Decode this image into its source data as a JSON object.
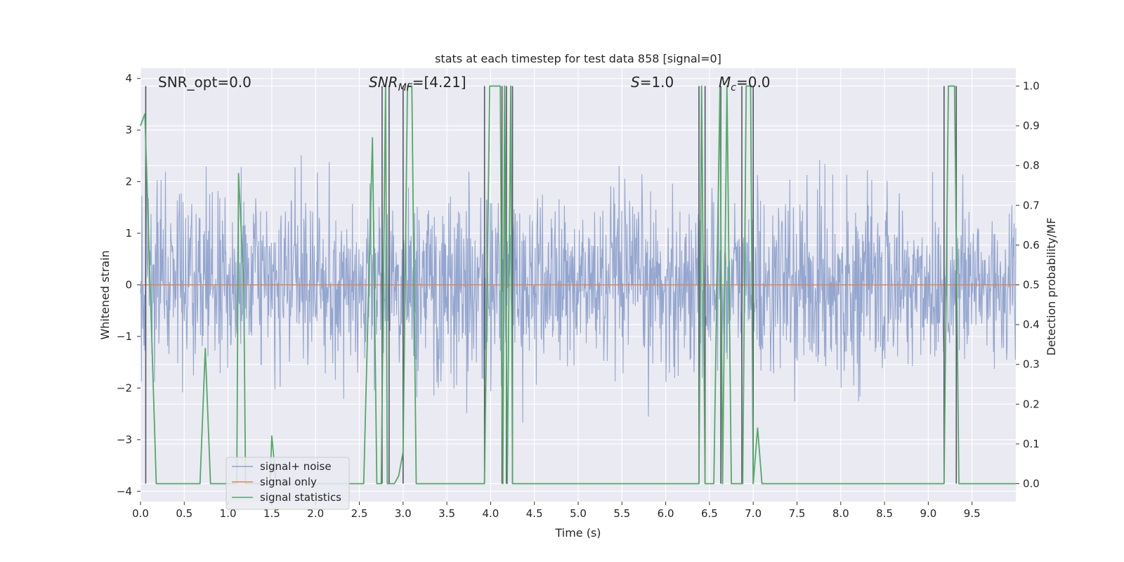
{
  "chart_data": {
    "type": "line",
    "title": "stats at each timestep for test data 858 [signal=0]",
    "xlabel": "Time (s)",
    "ylabel": "Whitened strain",
    "y2label": "Detection probability/MF",
    "xlim": [
      0.0,
      10.0
    ],
    "ylim": [
      -4.2,
      4.2
    ],
    "y2lim": [
      -0.045,
      1.045
    ],
    "x_ticks": [
      "0.0",
      "0.5",
      "1.0",
      "1.5",
      "2.0",
      "2.5",
      "3.0",
      "3.5",
      "4.0",
      "4.5",
      "5.0",
      "5.5",
      "6.0",
      "6.5",
      "7.0",
      "7.5",
      "8.0",
      "8.5",
      "9.0",
      "9.5"
    ],
    "x_tick_values": [
      0,
      0.5,
      1,
      1.5,
      2,
      2.5,
      3,
      3.5,
      4,
      4.5,
      5,
      5.5,
      6,
      6.5,
      7,
      7.5,
      8,
      8.5,
      9,
      9.5
    ],
    "y_ticks": [
      "−4",
      "−3",
      "−2",
      "−1",
      "0",
      "1",
      "2",
      "3",
      "4"
    ],
    "y_tick_values": [
      -4,
      -3,
      -2,
      -1,
      0,
      1,
      2,
      3,
      4
    ],
    "y2_ticks": [
      "0.0",
      "0.1",
      "0.2",
      "0.3",
      "0.4",
      "0.5",
      "0.6",
      "0.7",
      "0.8",
      "0.9",
      "1.0"
    ],
    "y2_tick_values": [
      0,
      0.1,
      0.2,
      0.3,
      0.4,
      0.5,
      0.6,
      0.7,
      0.8,
      0.9,
      1.0
    ],
    "grid": true,
    "legend_position": "lower-left",
    "annotations": {
      "snr_opt": "SNR_opt=0.0",
      "snr_mf_main": "SNR",
      "snr_mf_sub": "MF",
      "snr_mf_val": "=[4.21]",
      "s_main": "S",
      "s_val": "=1.0",
      "mc_main": "M",
      "mc_sub": "c",
      "mc_val": "=0.0"
    },
    "series": [
      {
        "name": "signal+ noise",
        "color": "#8fa2cc",
        "axis": "left",
        "style": "noise",
        "sigma": 0.85,
        "samples": 2000
      },
      {
        "name": "signal only",
        "color": "#dd8452",
        "axis": "left",
        "x": [
          0.0,
          10.0
        ],
        "y": [
          0.0,
          0.0
        ]
      },
      {
        "name": "signal statistics",
        "color": "#55a868",
        "axis": "right",
        "x": [
          0.0,
          0.05,
          0.18,
          0.68,
          0.74,
          0.8,
          1.1,
          1.12,
          1.18,
          1.2,
          1.48,
          1.5,
          1.55,
          2.55,
          2.65,
          2.7,
          2.75,
          2.8,
          2.82,
          2.85,
          2.9,
          2.95,
          3.0,
          3.05,
          3.1,
          3.15,
          3.2,
          3.93,
          3.99,
          4.11,
          4.14,
          4.16,
          4.19,
          4.23,
          4.25,
          4.28,
          4.32,
          6.38,
          6.41,
          6.45,
          6.5,
          6.55,
          6.62,
          6.65,
          6.7,
          6.75,
          6.88,
          6.92,
          6.97,
          7.0,
          7.05,
          7.1,
          9.18,
          9.23,
          9.3,
          9.35,
          10.0
        ],
        "y": [
          0.9,
          0.93,
          0.0,
          0.0,
          0.34,
          0.0,
          0.0,
          0.78,
          0.5,
          0.0,
          0.0,
          0.12,
          0.0,
          0.0,
          0.87,
          0.0,
          0.0,
          1.0,
          0.0,
          0.0,
          0.0,
          0.02,
          0.08,
          1.0,
          1.0,
          0.0,
          0.0,
          0.0,
          1.0,
          1.0,
          0.0,
          1.0,
          0.0,
          1.0,
          0.0,
          0.0,
          0.0,
          0.0,
          1.0,
          0.0,
          0.0,
          0.0,
          1.0,
          0.0,
          1.0,
          0.0,
          0.0,
          1.0,
          1.0,
          0.0,
          0.14,
          0.0,
          0.0,
          1.0,
          1.0,
          0.0,
          0.0
        ]
      }
    ],
    "event_lines": [
      0.06,
      2.76,
      2.84,
      3.0,
      3.93,
      4.13,
      4.18,
      4.25,
      6.38,
      6.45,
      6.63,
      6.87,
      7.0,
      9.18,
      9.32
    ]
  }
}
